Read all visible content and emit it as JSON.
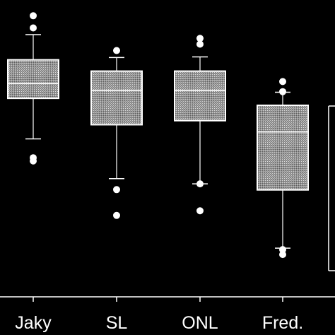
{
  "chart_data": {
    "type": "box",
    "title": "",
    "xlabel": "",
    "ylabel": "",
    "y_axis_visible": false,
    "grid": false,
    "ylim": [
      0,
      100
    ],
    "categories": [
      "Jaky",
      "SL",
      "ONL",
      "Fred."
    ],
    "boxes": [
      {
        "category": "Jaky",
        "whisker_low": 54.5,
        "q1": 68.5,
        "median": 73.6,
        "q3": 81.8,
        "whisker_high": 90.5,
        "outliers": [
          46.9,
          48.0,
          92.8,
          97.0
        ]
      },
      {
        "category": "SL",
        "whisker_low": 40.8,
        "q1": 59.4,
        "median": 71.2,
        "q3": 77.9,
        "whisker_high": 82.6,
        "outliers": [
          28.1,
          37.0,
          85.0
        ]
      },
      {
        "category": "ONL",
        "whisker_low": 39.0,
        "q1": 60.8,
        "median": 71.2,
        "q3": 77.9,
        "whisker_high": 82.8,
        "outliers": [
          29.7,
          39.0,
          87.2,
          89.2
        ]
      },
      {
        "category": "Fred.",
        "whisker_low": 16.8,
        "q1": 36.9,
        "median": 56.9,
        "q3": 66.1,
        "whisker_high": 70.6,
        "outliers": [
          14.6,
          16.3,
          70.8,
          74.3
        ]
      }
    ],
    "box_fill": "#9a9a9a",
    "line_color": "#ffffff",
    "background": "#000000"
  }
}
